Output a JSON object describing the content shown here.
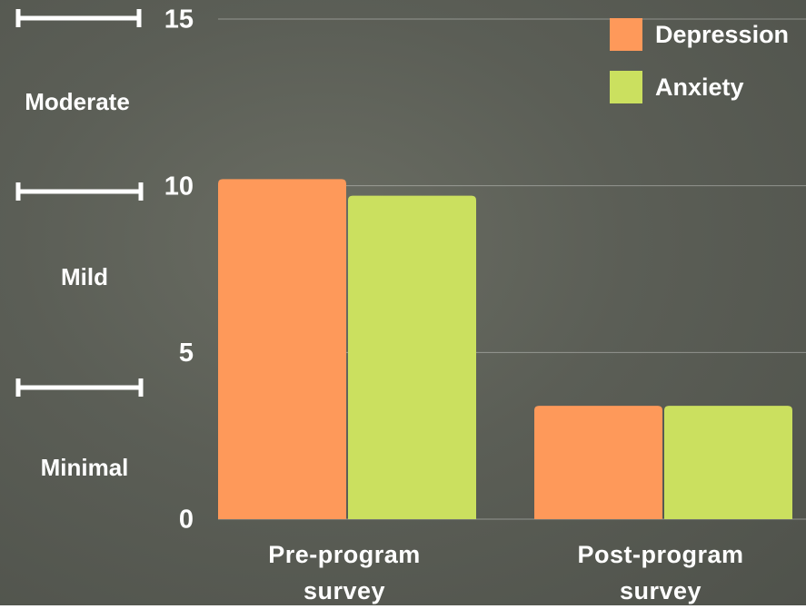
{
  "chart_data": {
    "type": "bar",
    "categories": [
      "Pre-program survey",
      "Post-program survey"
    ],
    "series": [
      {
        "name": "Depression",
        "color": "#fe995a",
        "values": [
          10.2,
          3.4
        ]
      },
      {
        "name": "Anxiety",
        "color": "#cbe05f",
        "values": [
          9.7,
          3.4
        ]
      }
    ],
    "ylim": [
      0,
      15
    ],
    "yticks": [
      0,
      5,
      10,
      15
    ],
    "grid": true,
    "legend": "top-right",
    "annotations": [
      "Moderate",
      "Mild",
      "Minimal"
    ]
  }
}
